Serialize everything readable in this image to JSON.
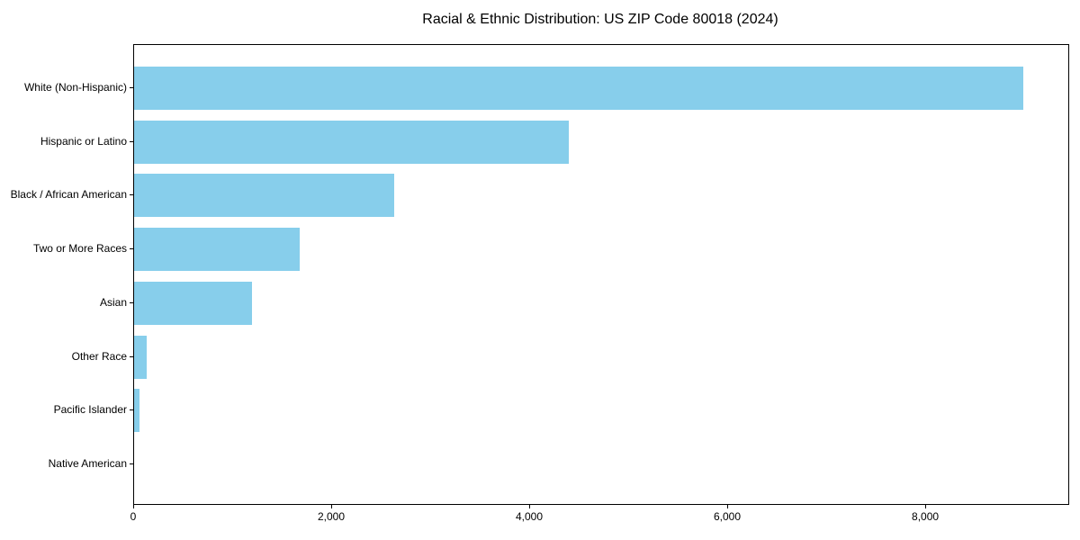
{
  "chart_data": {
    "type": "bar",
    "orientation": "horizontal",
    "title": "Racial & Ethnic Distribution: US ZIP Code 80018 (2024)",
    "categories": [
      "White (Non-Hispanic)",
      "Hispanic or Latino",
      "Black / African American",
      "Two or More Races",
      "Asian",
      "Other Race",
      "Pacific Islander",
      "Native American"
    ],
    "values": [
      8980,
      4390,
      2625,
      1670,
      1195,
      130,
      50,
      0
    ],
    "xlabel": "",
    "ylabel": "",
    "xlim": [
      0,
      9436
    ],
    "x_ticks": [
      0,
      2000,
      4000,
      6000,
      8000
    ],
    "x_tick_labels": [
      "0",
      "2,000",
      "4,000",
      "6,000",
      "8,000"
    ],
    "bar_color": "#87CEEB",
    "text_color": "#000000",
    "spine_color": "#000000",
    "grid": false,
    "legend": "none",
    "largest_category_first": true
  }
}
